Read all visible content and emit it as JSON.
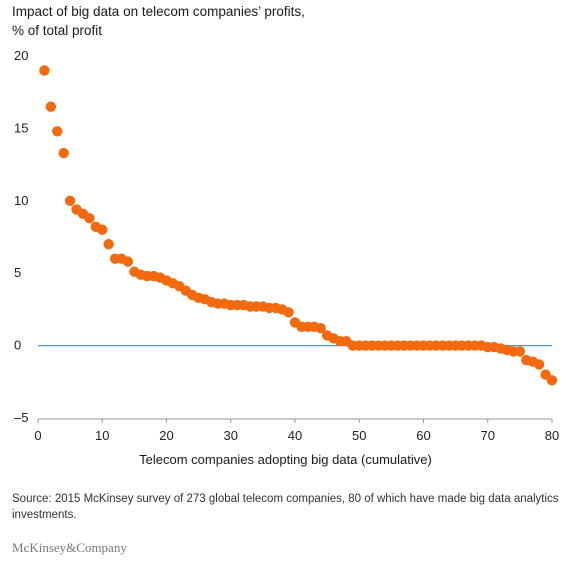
{
  "title_line1": "Impact of big data on telecom companies’ profits,",
  "title_line2": "% of total profit",
  "xlabel_main": "Telecom companies adopting big data",
  "xlabel_sub": "(cumulative)",
  "source": "Source: 2015 McKinsey survey of 273 global telecom companies, 80 of which have made big data analytics investments.",
  "logo": "McKinsey&Company",
  "colors": {
    "point": "#f26a10",
    "zero_line": "#3aa6b9",
    "axis": "#999999"
  },
  "chart_data": {
    "type": "scatter",
    "title": "Impact of big data on telecom companies’ profits, % of total profit",
    "xlabel": "Telecom companies adopting big data (cumulative)",
    "ylabel": "",
    "xlim": [
      0,
      80
    ],
    "ylim": [
      -5,
      20
    ],
    "xticks": [
      0,
      10,
      20,
      30,
      40,
      50,
      60,
      70,
      80
    ],
    "yticks": [
      -5,
      0,
      5,
      10,
      15,
      20
    ],
    "reference_line": {
      "y": 0
    },
    "grid": false,
    "x": [
      1,
      2,
      3,
      4,
      5,
      6,
      7,
      8,
      9,
      10,
      11,
      12,
      13,
      14,
      15,
      16,
      17,
      18,
      19,
      20,
      21,
      22,
      23,
      24,
      25,
      26,
      27,
      28,
      29,
      30,
      31,
      32,
      33,
      34,
      35,
      36,
      37,
      38,
      39,
      40,
      41,
      42,
      43,
      44,
      45,
      46,
      47,
      48,
      49,
      50,
      51,
      52,
      53,
      54,
      55,
      56,
      57,
      58,
      59,
      60,
      61,
      62,
      63,
      64,
      65,
      66,
      67,
      68,
      69,
      70,
      71,
      72,
      73,
      74,
      75,
      76,
      77,
      78,
      79,
      80
    ],
    "y": [
      19.0,
      16.5,
      14.8,
      13.3,
      10.0,
      9.4,
      9.1,
      8.8,
      8.2,
      8.0,
      7.0,
      6.0,
      6.0,
      5.8,
      5.1,
      4.9,
      4.8,
      4.8,
      4.7,
      4.5,
      4.3,
      4.1,
      3.8,
      3.5,
      3.3,
      3.2,
      3.0,
      2.9,
      2.9,
      2.8,
      2.8,
      2.8,
      2.7,
      2.7,
      2.7,
      2.6,
      2.6,
      2.5,
      2.3,
      1.6,
      1.3,
      1.3,
      1.3,
      1.2,
      0.7,
      0.5,
      0.3,
      0.3,
      0.0,
      0.0,
      0.0,
      0.0,
      0.0,
      0.0,
      0.0,
      0.0,
      0.0,
      0.0,
      0.0,
      0.0,
      0.0,
      0.0,
      0.0,
      0.0,
      0.0,
      0.0,
      0.0,
      0.0,
      0.0,
      -0.1,
      -0.1,
      -0.2,
      -0.3,
      -0.4,
      -0.4,
      -1.0,
      -1.1,
      -1.3,
      -2.0,
      -2.4
    ]
  }
}
